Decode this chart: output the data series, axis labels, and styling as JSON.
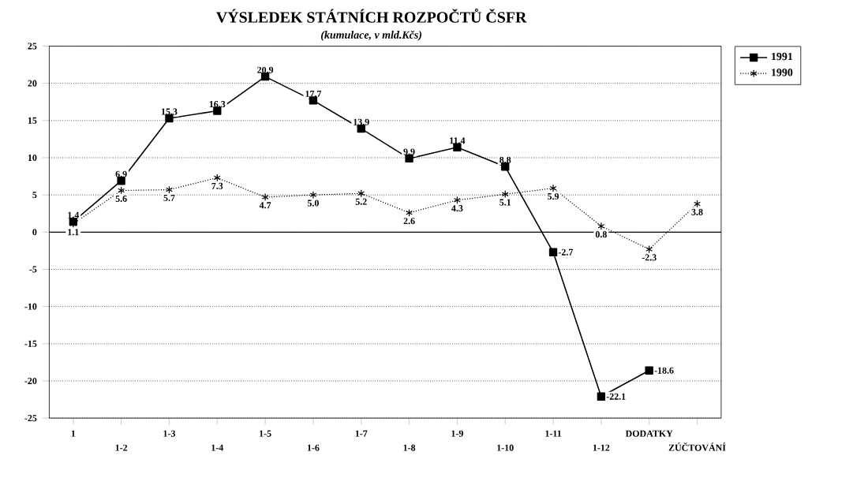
{
  "chart_data": {
    "type": "line",
    "title": "VÝSLEDEK STÁTNÍCH ROZPOČTŮ ČSFR",
    "subtitle": "(kumulace, v mld.Kčs)",
    "categories": [
      "1",
      "1-2",
      "1-3",
      "1-4",
      "1-5",
      "1-6",
      "1-7",
      "1-8",
      "1-9",
      "1-10",
      "1-11",
      "1-12",
      "DODATKY",
      "ZÚČTOVÁNÍ"
    ],
    "series": [
      {
        "name": "1991",
        "color": "#000000",
        "marker": "square",
        "line_style": "solid",
        "values": [
          1.4,
          6.9,
          15.3,
          16.3,
          20.9,
          17.7,
          13.9,
          9.9,
          11.4,
          8.8,
          -2.7,
          -22.1,
          -18.6,
          null
        ]
      },
      {
        "name": "1990",
        "color": "#000000",
        "marker": "cross",
        "line_style": "dotted",
        "values": [
          1.1,
          5.6,
          5.7,
          7.3,
          4.7,
          5.0,
          5.2,
          2.6,
          4.3,
          5.1,
          5.9,
          0.8,
          -2.3,
          3.8
        ],
        "value_labels": [
          "1.1",
          "5.6",
          "5.7",
          "7.3",
          "4.7",
          "5.0",
          "5.2",
          "2.6",
          "4.3",
          "5.1",
          "5.9",
          "0.8",
          "-2.3",
          "3.8"
        ]
      }
    ],
    "ylim": [
      -25,
      25
    ],
    "yticks": [
      -25,
      -20,
      -15,
      -10,
      -5,
      0,
      5,
      10,
      15,
      20,
      25
    ],
    "ref_lines": [
      {
        "axis": "y",
        "value": 0
      }
    ],
    "grid": "y",
    "legend": "right",
    "data_labels": true
  }
}
